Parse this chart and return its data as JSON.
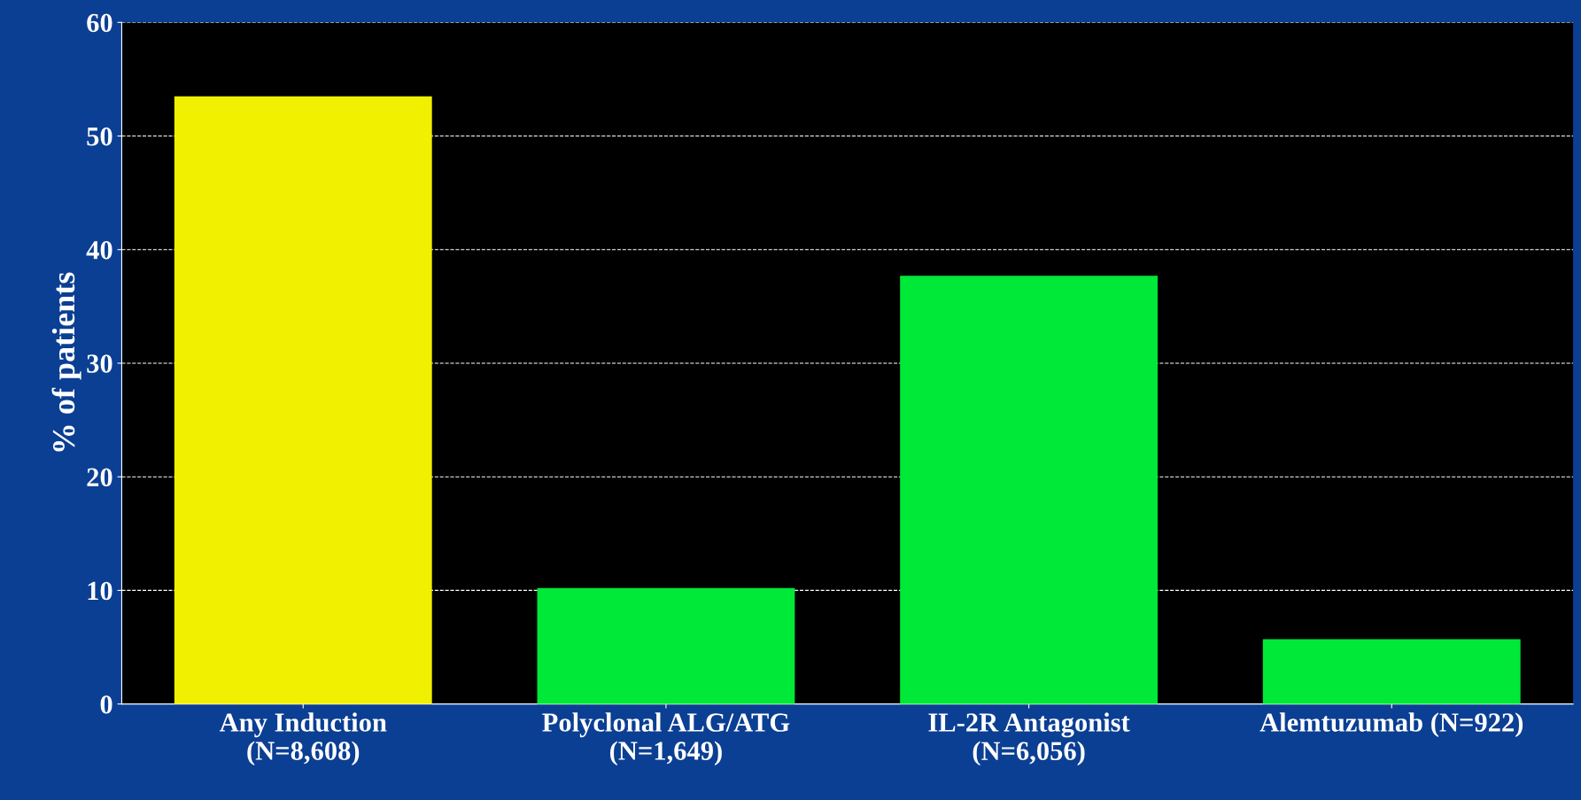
{
  "chart_data": {
    "type": "bar",
    "ylabel": "% of patients",
    "categories": [
      "Any Induction\n(N=8,608)",
      "Polyclonal ALG/ATG\n(N=1,649)",
      "IL-2R Antagonist\n(N=6,056)",
      "Alemtuzumab (N=922)"
    ],
    "values": [
      53.5,
      10.2,
      37.7,
      5.7
    ],
    "colors": [
      "#f0f000",
      "#00e838",
      "#00e838",
      "#00e838"
    ],
    "ylim": [
      0,
      60
    ],
    "yticks": [
      0,
      10,
      20,
      30,
      40,
      50,
      60
    ],
    "grid": "y"
  }
}
